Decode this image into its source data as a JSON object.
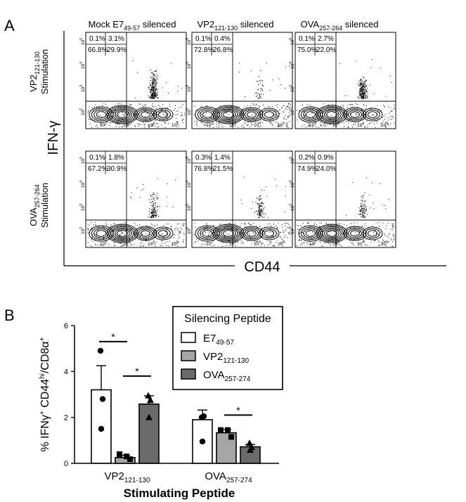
{
  "panel_a": {
    "label": "A",
    "columns": [
      "Mock E749-57 silenced",
      "VP2121-130 silenced",
      "OVA257-264 silenced"
    ],
    "columns_rich": [
      {
        "base": "Mock E7",
        "sub": "49-57",
        "rest": " silenced"
      },
      {
        "base": "VP2",
        "sub": "121-130",
        "rest": " silenced"
      },
      {
        "base": "OVA",
        "sub": "257-264",
        "rest": " silenced"
      }
    ],
    "rows": [
      {
        "base": "VP2",
        "sub": "121-130",
        "line2": "Stimulation"
      },
      {
        "base": "OVA",
        "sub": "257-264",
        "line2": "Stimulation"
      }
    ],
    "y_axis_label": "IFN-γ",
    "x_axis_label": "CD44",
    "tick_base": "10",
    "x_tick_exps": [
      "2",
      "3",
      "4",
      "5"
    ],
    "y_tick_exps": [
      "2",
      "3",
      "4",
      "5"
    ],
    "plots": [
      {
        "q": [
          "0.1%",
          "3.1%",
          "66.8%",
          "29.9%"
        ],
        "pos_density": 1.0
      },
      {
        "q": [
          "0.1%",
          "0.4%",
          "72.8%",
          "26.8%"
        ],
        "pos_density": 0.15
      },
      {
        "q": [
          "0.1%",
          "2.7%",
          "75.0%",
          "22.0%"
        ],
        "pos_density": 0.9
      },
      {
        "q": [
          "0.1%",
          "1.8%",
          "67.2%",
          "30.9%"
        ],
        "pos_density": 0.55
      },
      {
        "q": [
          "0.3%",
          "1.4%",
          "76.8%",
          "21.5%"
        ],
        "pos_density": 0.45
      },
      {
        "q": [
          "0.2%",
          "0.9%",
          "74.9%",
          "24.0%"
        ],
        "pos_density": 0.35
      }
    ]
  },
  "chart_data": {
    "type": "bar",
    "panel_label": "B",
    "title": "",
    "xlabel": "Stimulating Peptide",
    "ylabel": "% IFNγ+ CD44hi/CD8α+",
    "ylabel_rich": {
      "a": "% IFNγ",
      "sup1": "+",
      "b": " CD44",
      "sup2": "hi",
      "c": "/CD8α",
      "sup3": "+"
    },
    "ylim": [
      0,
      6
    ],
    "yticks": [
      "0",
      "2",
      "4",
      "6"
    ],
    "categories": [
      "VP2121-130",
      "OVA257-274"
    ],
    "categories_rich": [
      {
        "base": "VP2",
        "sub": "121-130"
      },
      {
        "base": "OVA",
        "sub": "257-274"
      }
    ],
    "legend_title": "Silencing Peptide",
    "legend_position": "top-right",
    "significance_mark": "*",
    "series": [
      {
        "name": "E749-57",
        "base": "E7",
        "sub": "49-57",
        "color": "#ffffff",
        "marker": "circle",
        "values": [
          3.2,
          1.9
        ],
        "errors": [
          1.05,
          0.42
        ],
        "points": [
          [
            4.9,
            2.8,
            1.5
          ],
          [
            2.0,
            2.05,
            0.95
          ]
        ]
      },
      {
        "name": "VP2121-130",
        "base": "VP2",
        "sub": "121-130",
        "color": "#a6a6a6",
        "marker": "square",
        "values": [
          0.25,
          1.33
        ],
        "errors": [
          0.1,
          0.14
        ],
        "points": [
          [
            0.4,
            0.3,
            0.18
          ],
          [
            1.45,
            1.45,
            1.15
          ]
        ]
      },
      {
        "name": "OVA257-274",
        "base": "OVA",
        "sub": "257-274",
        "color": "#6b6b6b",
        "marker": "triangle",
        "values": [
          2.58,
          0.72
        ],
        "errors": [
          0.36,
          0.1
        ],
        "points": [
          [
            2.95,
            2.75,
            2.0
          ],
          [
            0.88,
            0.7,
            0.58
          ]
        ]
      }
    ],
    "significance": [
      {
        "group": 0,
        "from": 0,
        "to": 1,
        "y": 5.3
      },
      {
        "group": 0,
        "from": 1,
        "to": 2,
        "y": 3.8
      },
      {
        "group": 1,
        "from": 1,
        "to": 2,
        "y": 2.1
      }
    ]
  }
}
